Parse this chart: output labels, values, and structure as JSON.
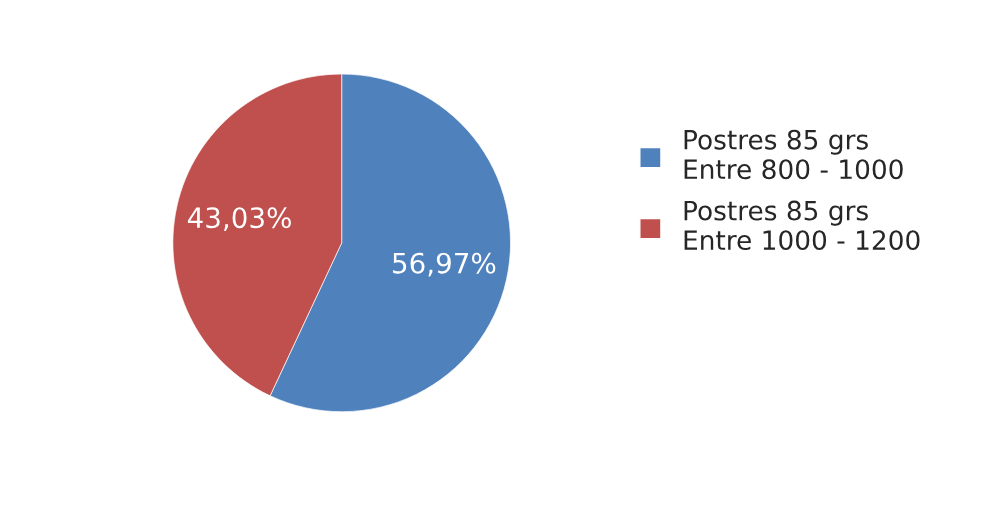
{
  "chart_data": {
    "type": "pie",
    "categories": [
      "Postres 85 grs\nEntre 800 - 1000",
      "Postres 85 grs\nEntre 1000 - 1200"
    ],
    "values": [
      56.97,
      43.03
    ],
    "colors": [
      "#4f81bd",
      "#c0504d"
    ],
    "value_labels": [
      "56,97%",
      "43,03%"
    ],
    "legend": "right"
  }
}
